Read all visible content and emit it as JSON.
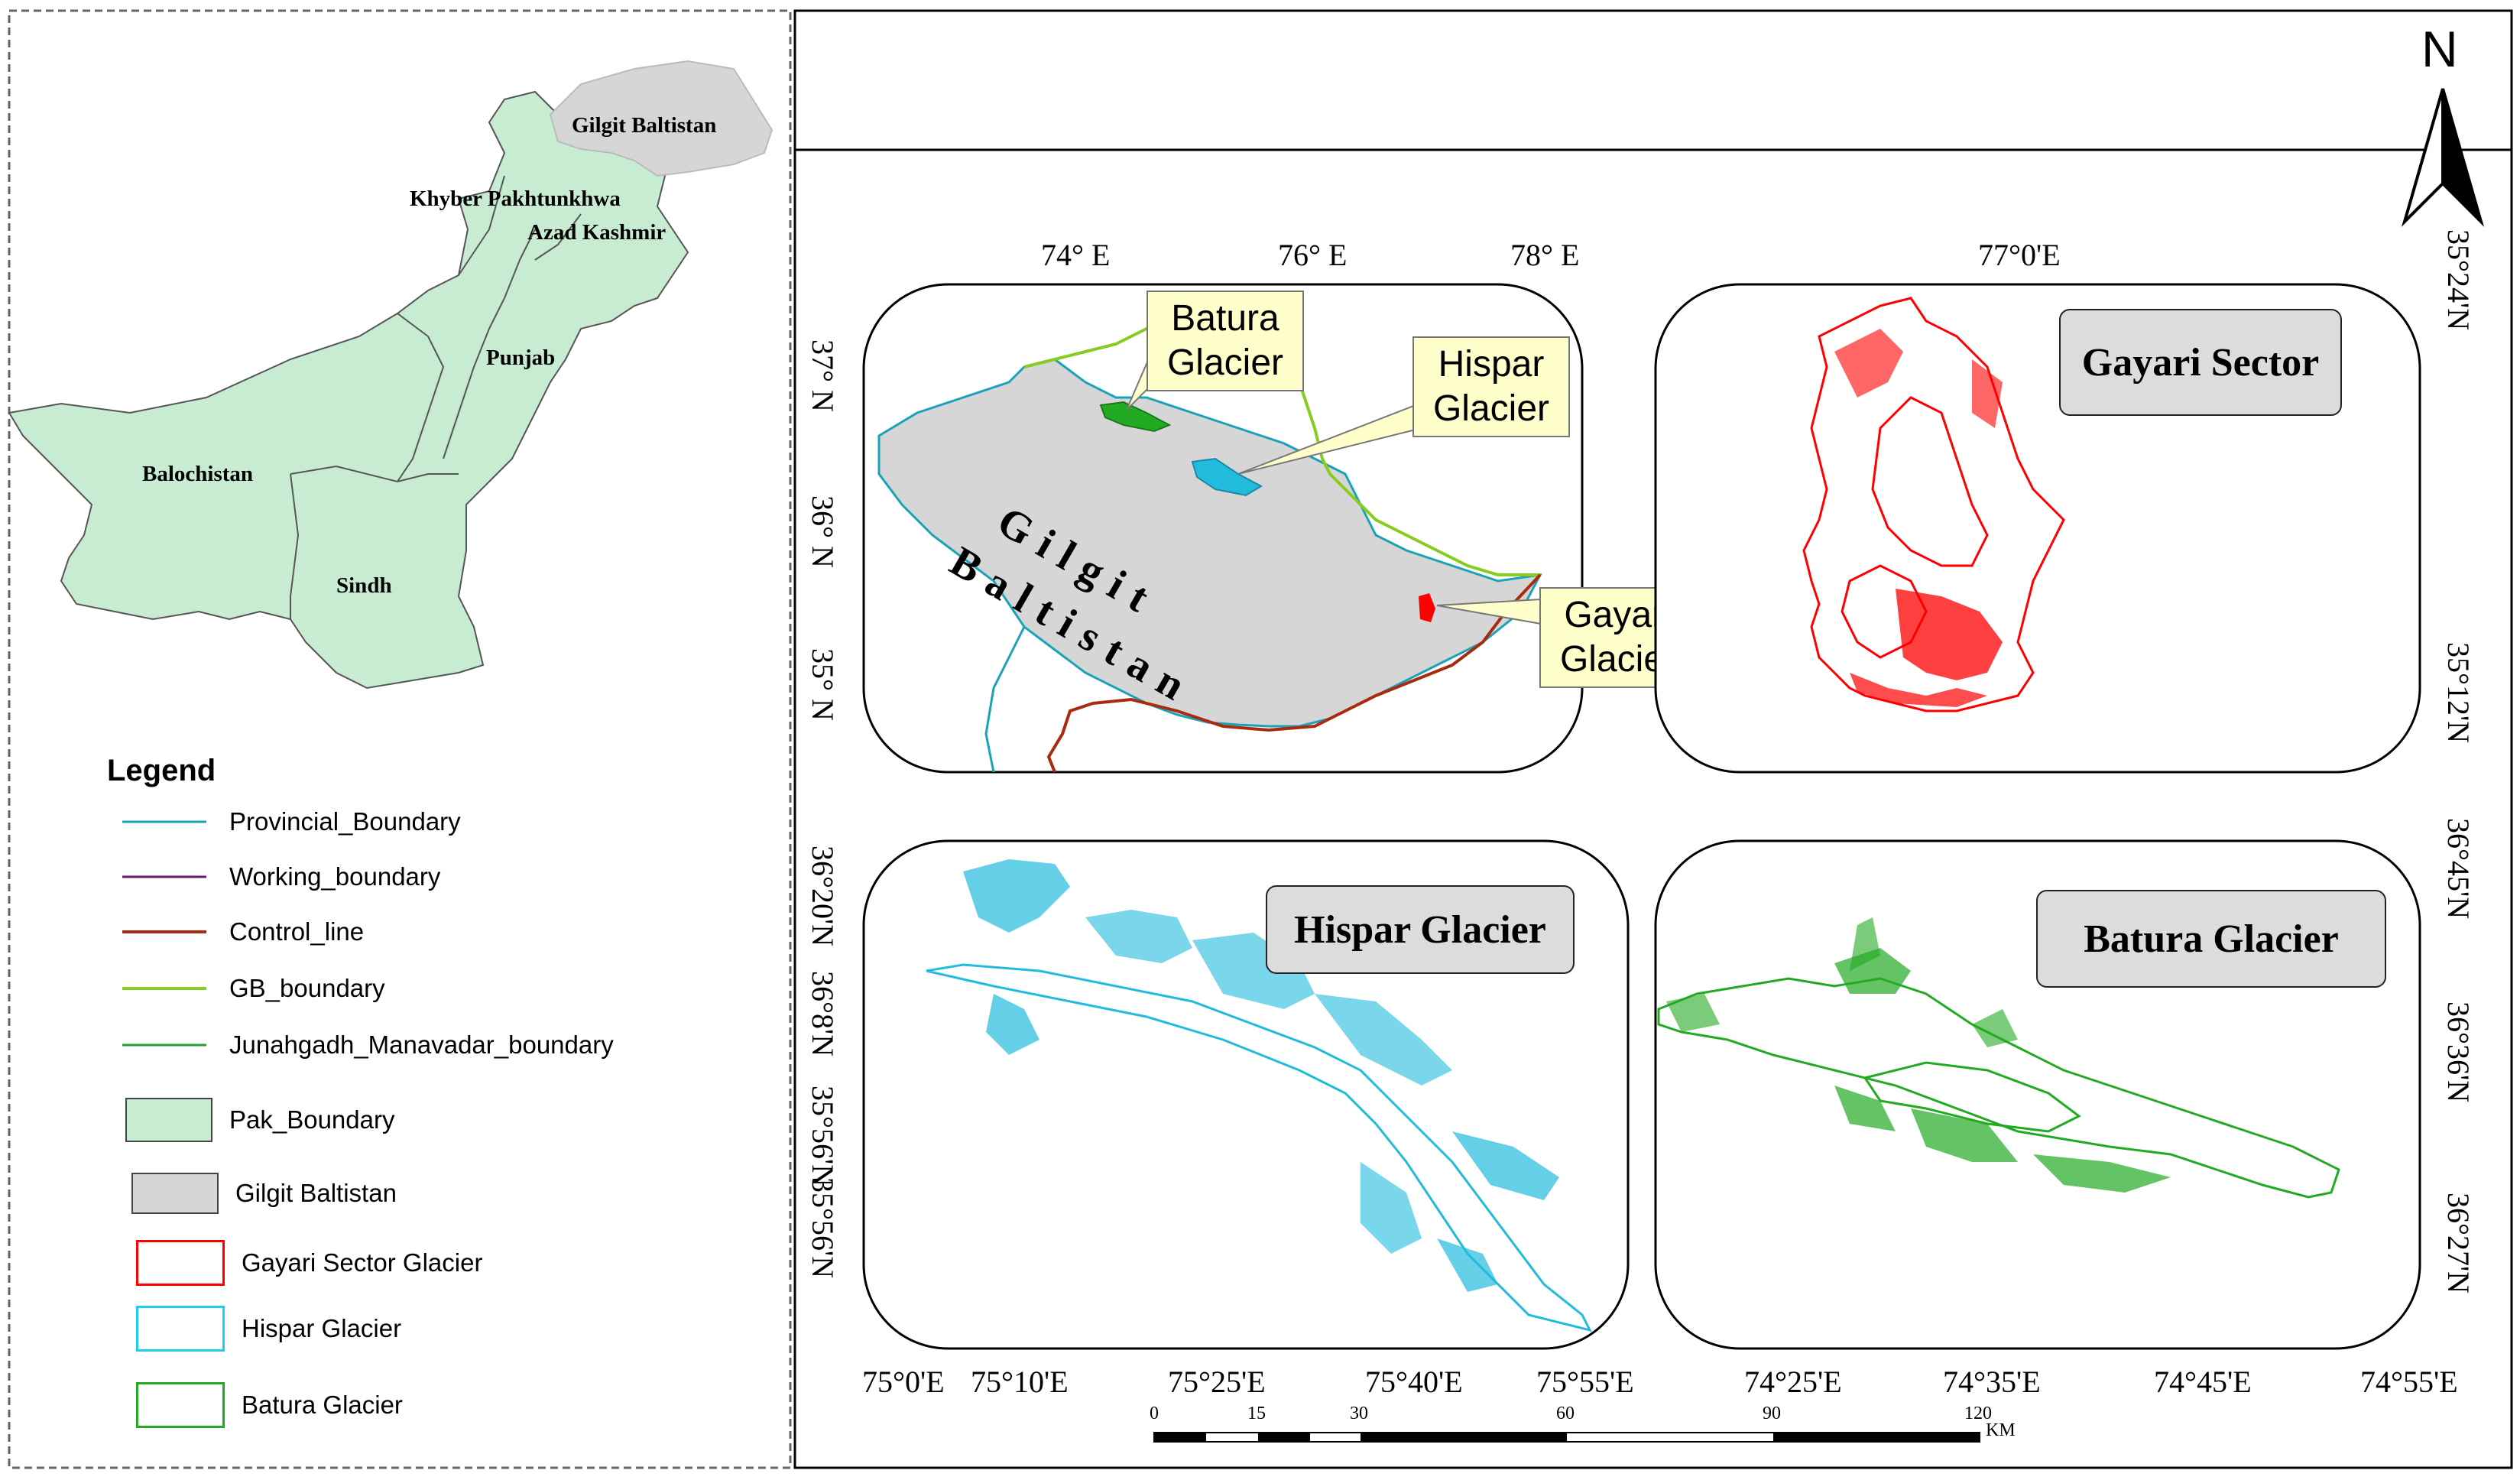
{
  "colors": {
    "pak_fill": "#c8ecd2",
    "gb_fill": "#d6d6d6",
    "provincial": "#1aa3b8",
    "working": "#6a1a6a",
    "control": "#aa2a10",
    "gb_boundary": "#88cc22",
    "junagadh": "#22a030",
    "gayari": "#ff0000",
    "hispar": "#22bbdd",
    "batura": "#22aa22"
  },
  "inset": {
    "labels": {
      "gilgit_baltistan": "Gilgit Baltistan",
      "khyber": "Khyber Pakhtunkhwa",
      "azad": "Azad Kashmir",
      "punjab": "Punjab",
      "balochistan": "Balochistan",
      "sindh": "Sindh"
    }
  },
  "legend": {
    "title": "Legend",
    "items": [
      {
        "label": "Provincial_Boundary",
        "icon": "line",
        "color": "#1aa3b8"
      },
      {
        "label": "Working_boundary",
        "icon": "line",
        "color": "#6a1a6a"
      },
      {
        "label": "Control_line",
        "icon": "line",
        "color": "#aa2a10"
      },
      {
        "label": "GB_boundary",
        "icon": "line",
        "color": "#88cc22"
      },
      {
        "label": "Junahgadh_Manavadar_boundary",
        "icon": "line",
        "color": "#22a030"
      },
      {
        "label": "Pak_Boundary",
        "icon": "fill-box",
        "color": "#c8ecd2"
      },
      {
        "label": "Gilgit Baltistan",
        "icon": "fill-box",
        "color": "#d6d6d6"
      },
      {
        "label": "Gayari Sector Glacier",
        "icon": "outline-box",
        "color": "#ff0000"
      },
      {
        "label": "Hispar Glacier",
        "icon": "outline-box",
        "color": "#22ccee"
      },
      {
        "label": "Batura Glacier",
        "icon": "outline-box",
        "color": "#22aa22"
      }
    ]
  },
  "north_arrow": {
    "label": "N"
  },
  "main_map": {
    "top_coords": [
      "74° E",
      "76° E",
      "78° E"
    ],
    "left_coords": [
      "37° N",
      "36° N",
      "35° N"
    ],
    "region_label": "Gilgit Baltistan",
    "region_label_line1": "Gilgit",
    "region_label_line2": "Baltistan",
    "callouts": {
      "batura": "Batura\nGlacier",
      "hispar": "Hispar\nGlacier",
      "gayari": "Gayari\nGlacier"
    }
  },
  "gayari_panel": {
    "title": "Gayari Sector",
    "top_coord": "77°0'E",
    "right_coords": [
      "35°24'N",
      "35°12'N"
    ]
  },
  "hispar_panel": {
    "title": "Hispar Glacier",
    "left_coords": [
      "36°20'N",
      "36°8'N",
      "35°56'N",
      "35°56'N"
    ],
    "bottom_coords": [
      "75°0'E",
      "75°10'E",
      "75°25'E",
      "75°40'E",
      "75°55'E"
    ]
  },
  "batura_panel": {
    "title": "Batura Glacier",
    "right_coords": [
      "36°45'N",
      "36°36'N",
      "36°27'N"
    ],
    "bottom_coords": [
      "74°25'E",
      "74°35'E",
      "74°45'E",
      "74°55'E"
    ]
  },
  "scale_bar": {
    "ticks": [
      "0",
      "15",
      "30",
      "60",
      "90",
      "120"
    ],
    "unit": "KM"
  }
}
